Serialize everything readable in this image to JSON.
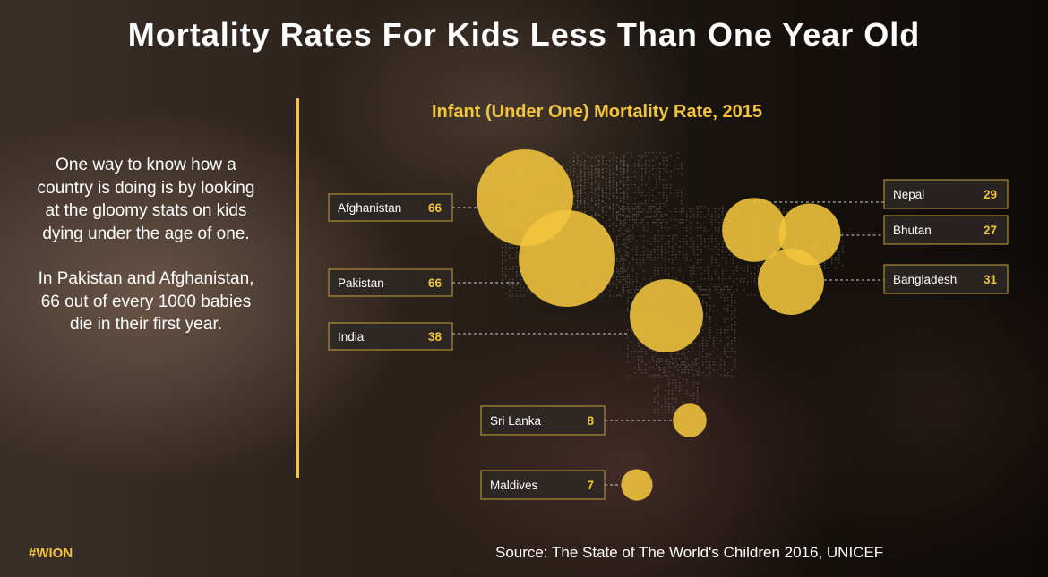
{
  "title": "Mortality Rates For Kids Less Than One Year Old",
  "intro": {
    "paragraph1": "One way to know how a country is doing is by looking at the gloomy stats on kids dying under the age of one.",
    "paragraph2": "In Pakistan and Afghanistan, 66 out of every 1000 babies die in their first year."
  },
  "tag": "#WION",
  "source": "Source: The State of The World's Children 2016, UNICEF",
  "colors": {
    "accent": "#f2c53d",
    "text": "#ffffff"
  },
  "chart_data": {
    "type": "bubble-map",
    "title": "Infant (Under One) Mortality Rate, 2015",
    "unit": "deaths per 1000 live births",
    "countries": [
      {
        "name": "Afghanistan",
        "value": 66
      },
      {
        "name": "Pakistan",
        "value": 66
      },
      {
        "name": "India",
        "value": 38
      },
      {
        "name": "Nepal",
        "value": 29
      },
      {
        "name": "Bhutan",
        "value": 27
      },
      {
        "name": "Bangladesh",
        "value": 31
      },
      {
        "name": "Sri Lanka",
        "value": 8
      },
      {
        "name": "Maldives",
        "value": 7
      }
    ]
  }
}
